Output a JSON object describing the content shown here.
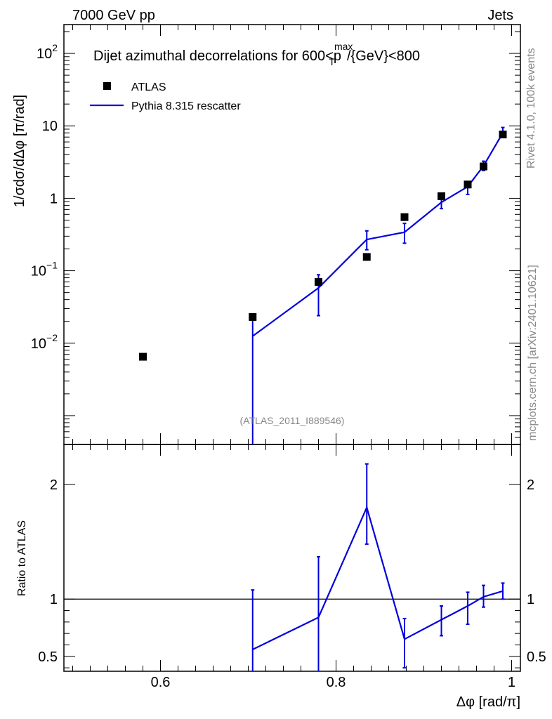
{
  "header": {
    "left": "7000 GeV pp",
    "right": "Jets"
  },
  "side_labels": {
    "top": "Rivet 4.1.0,  100k events",
    "bottom": "mcplots.cern.ch [arXiv:2401.10621]"
  },
  "chart_data": {
    "type": "line",
    "title": "Dijet azimuthal decorrelations for 600<p_T^max/{GeV}<800",
    "title_parts": {
      "pre": "Dijet azimuthal decorrelations for 600<p",
      "sup": "max",
      "sub": "T",
      "post": "/{GeV}<800"
    },
    "watermark": "(ATLAS_2011_I889546)",
    "xlabel": "Δφ [rad/π]",
    "ylabel_main": "1/σdσ/dΔφ [π/rad]",
    "ylabel_ratio": "Ratio to ATLAS",
    "xlim": [
      0.49,
      1.01
    ],
    "ylim_main": [
      0.0004,
      250
    ],
    "ylim_ratio": [
      0.37,
      2.35
    ],
    "ratio_ref_line": 1,
    "x_ticks": [
      0.6,
      0.8,
      1
    ],
    "x_tick_labels": [
      "0.6",
      "0.8",
      "1"
    ],
    "y_ticks_main": [
      {
        "v": 0.01,
        "base": "10",
        "exp": "−2"
      },
      {
        "v": 0.1,
        "base": "10",
        "exp": "−1"
      },
      {
        "v": 1,
        "base": "1",
        "exp": ""
      },
      {
        "v": 10,
        "base": "10",
        "exp": ""
      },
      {
        "v": 100,
        "base": "10",
        "exp": "2"
      }
    ],
    "y_ticks_ratio": [
      {
        "v": 0.5,
        "label": "0.5"
      },
      {
        "v": 1,
        "label": "1"
      },
      {
        "v": 2,
        "label": "2"
      }
    ],
    "legend": [
      {
        "label": "ATLAS",
        "marker": "square"
      },
      {
        "label": "Pythia 8.315 rescatter",
        "marker": "line"
      }
    ],
    "colors": {
      "data": "#000000",
      "mc": "#0000dd"
    },
    "series": [
      {
        "name": "ATLAS",
        "x": [
          0.58,
          0.705,
          0.78,
          0.835,
          0.878,
          0.92,
          0.95,
          0.968,
          0.99
        ],
        "y": [
          0.0065,
          0.023,
          0.07,
          0.155,
          0.55,
          1.07,
          1.55,
          2.75,
          7.6
        ]
      },
      {
        "name": "Pythia 8.315 rescatter",
        "x": [
          0.705,
          0.78,
          0.835,
          0.878,
          0.92,
          0.95,
          0.968,
          0.99
        ],
        "y": [
          0.0125,
          0.058,
          0.27,
          0.34,
          0.88,
          1.45,
          2.8,
          8.0
        ],
        "err_low": [
          0.0125,
          0.034,
          0.075,
          0.1,
          0.16,
          0.32,
          0.38,
          0.9
        ],
        "err_high": [
          0.012,
          0.03,
          0.085,
          0.11,
          0.14,
          0.22,
          0.45,
          1.5
        ],
        "ratio": [
          0.56,
          0.84,
          1.8,
          0.65,
          0.82,
          0.94,
          1.02,
          1.07
        ],
        "ratio_err_low": [
          0.56,
          0.84,
          0.32,
          0.25,
          0.14,
          0.16,
          0.09,
          0.07
        ],
        "ratio_err_high": [
          0.52,
          0.53,
          0.38,
          0.18,
          0.12,
          0.12,
          0.1,
          0.07
        ]
      }
    ]
  }
}
